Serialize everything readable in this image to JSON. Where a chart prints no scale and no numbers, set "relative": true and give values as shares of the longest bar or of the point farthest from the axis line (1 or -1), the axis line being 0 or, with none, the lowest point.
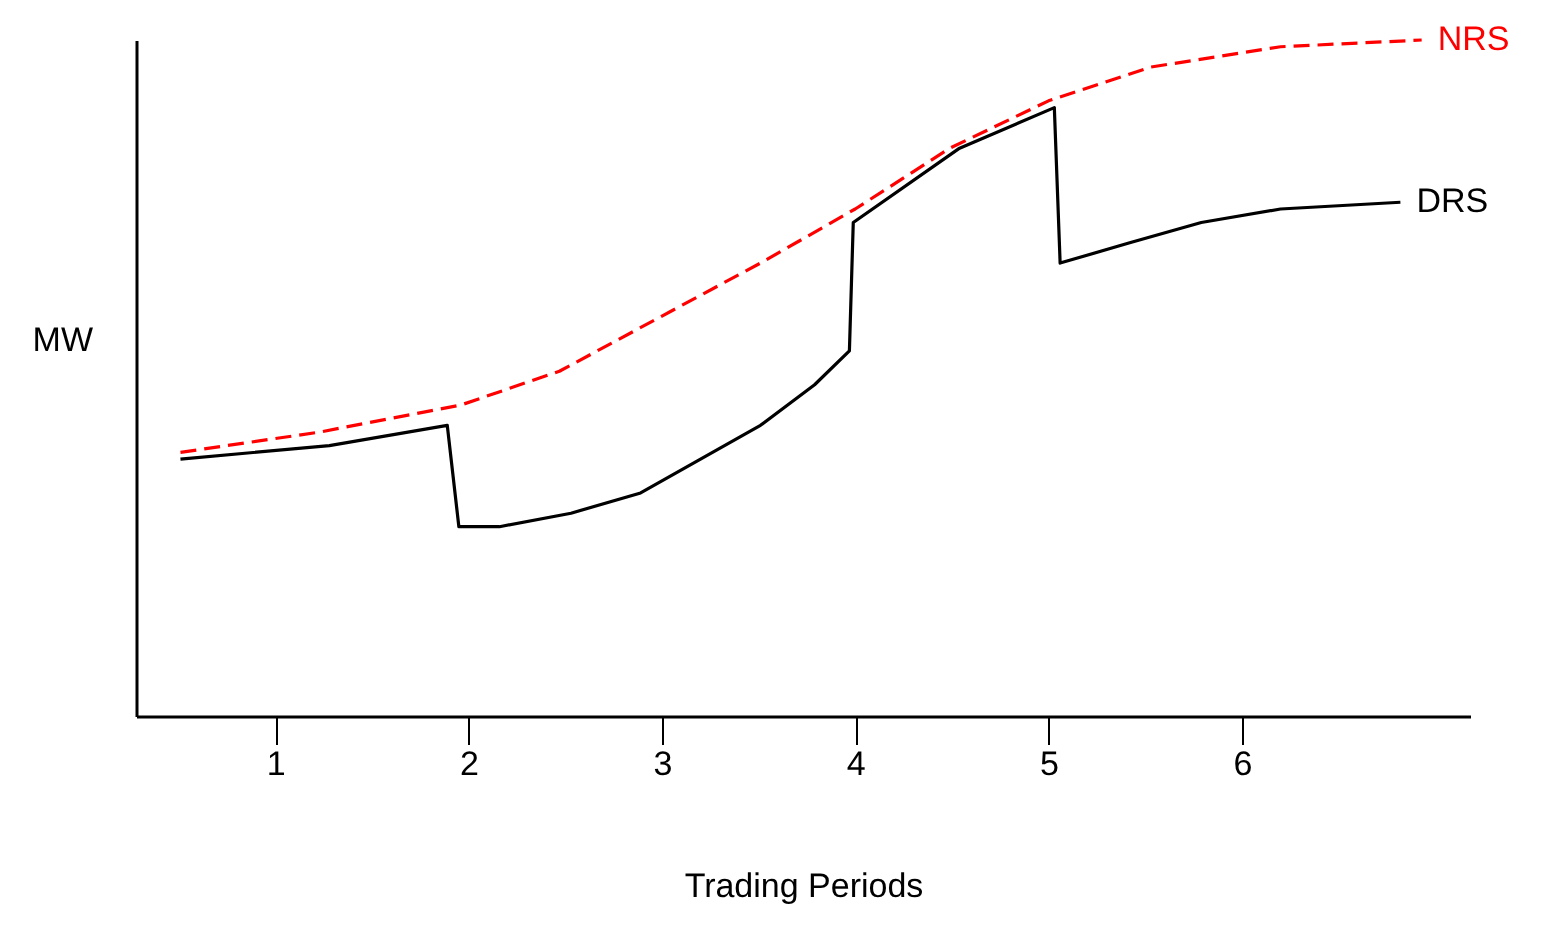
{
  "chart_data": {
    "type": "line",
    "xlabel": "Trading Periods",
    "ylabel": "MW",
    "relative": true,
    "marker": "none",
    "xlim": [
      0.28,
      7.18
    ],
    "xticks": [
      1,
      2,
      3,
      4,
      5,
      6
    ],
    "series": [
      {
        "name": "NRS",
        "color": "#ff0000",
        "line_style": "dashed",
        "x": [
          0.51,
          1.23,
          1.96,
          2.47,
          2.99,
          3.51,
          4.0,
          4.49,
          5.0,
          5.53,
          6.2,
          6.93
        ],
        "values": [
          0.39,
          0.42,
          0.46,
          0.51,
          0.59,
          0.67,
          0.75,
          0.84,
          0.91,
          0.96,
          0.99,
          1.0
        ]
      },
      {
        "name": "DRS",
        "color": "#000000",
        "line_style": "solid",
        "x": [
          0.51,
          1.28,
          1.89,
          1.95,
          2.16,
          2.53,
          2.89,
          3.2,
          3.51,
          3.79,
          3.97,
          3.99,
          4.54,
          5.03,
          5.06,
          5.42,
          5.79,
          6.2,
          6.82
        ],
        "values": [
          0.38,
          0.4,
          0.43,
          0.28,
          0.28,
          0.3,
          0.33,
          0.38,
          0.43,
          0.49,
          0.54,
          0.73,
          0.84,
          0.9,
          0.67,
          0.7,
          0.73,
          0.75,
          0.76
        ]
      }
    ]
  }
}
